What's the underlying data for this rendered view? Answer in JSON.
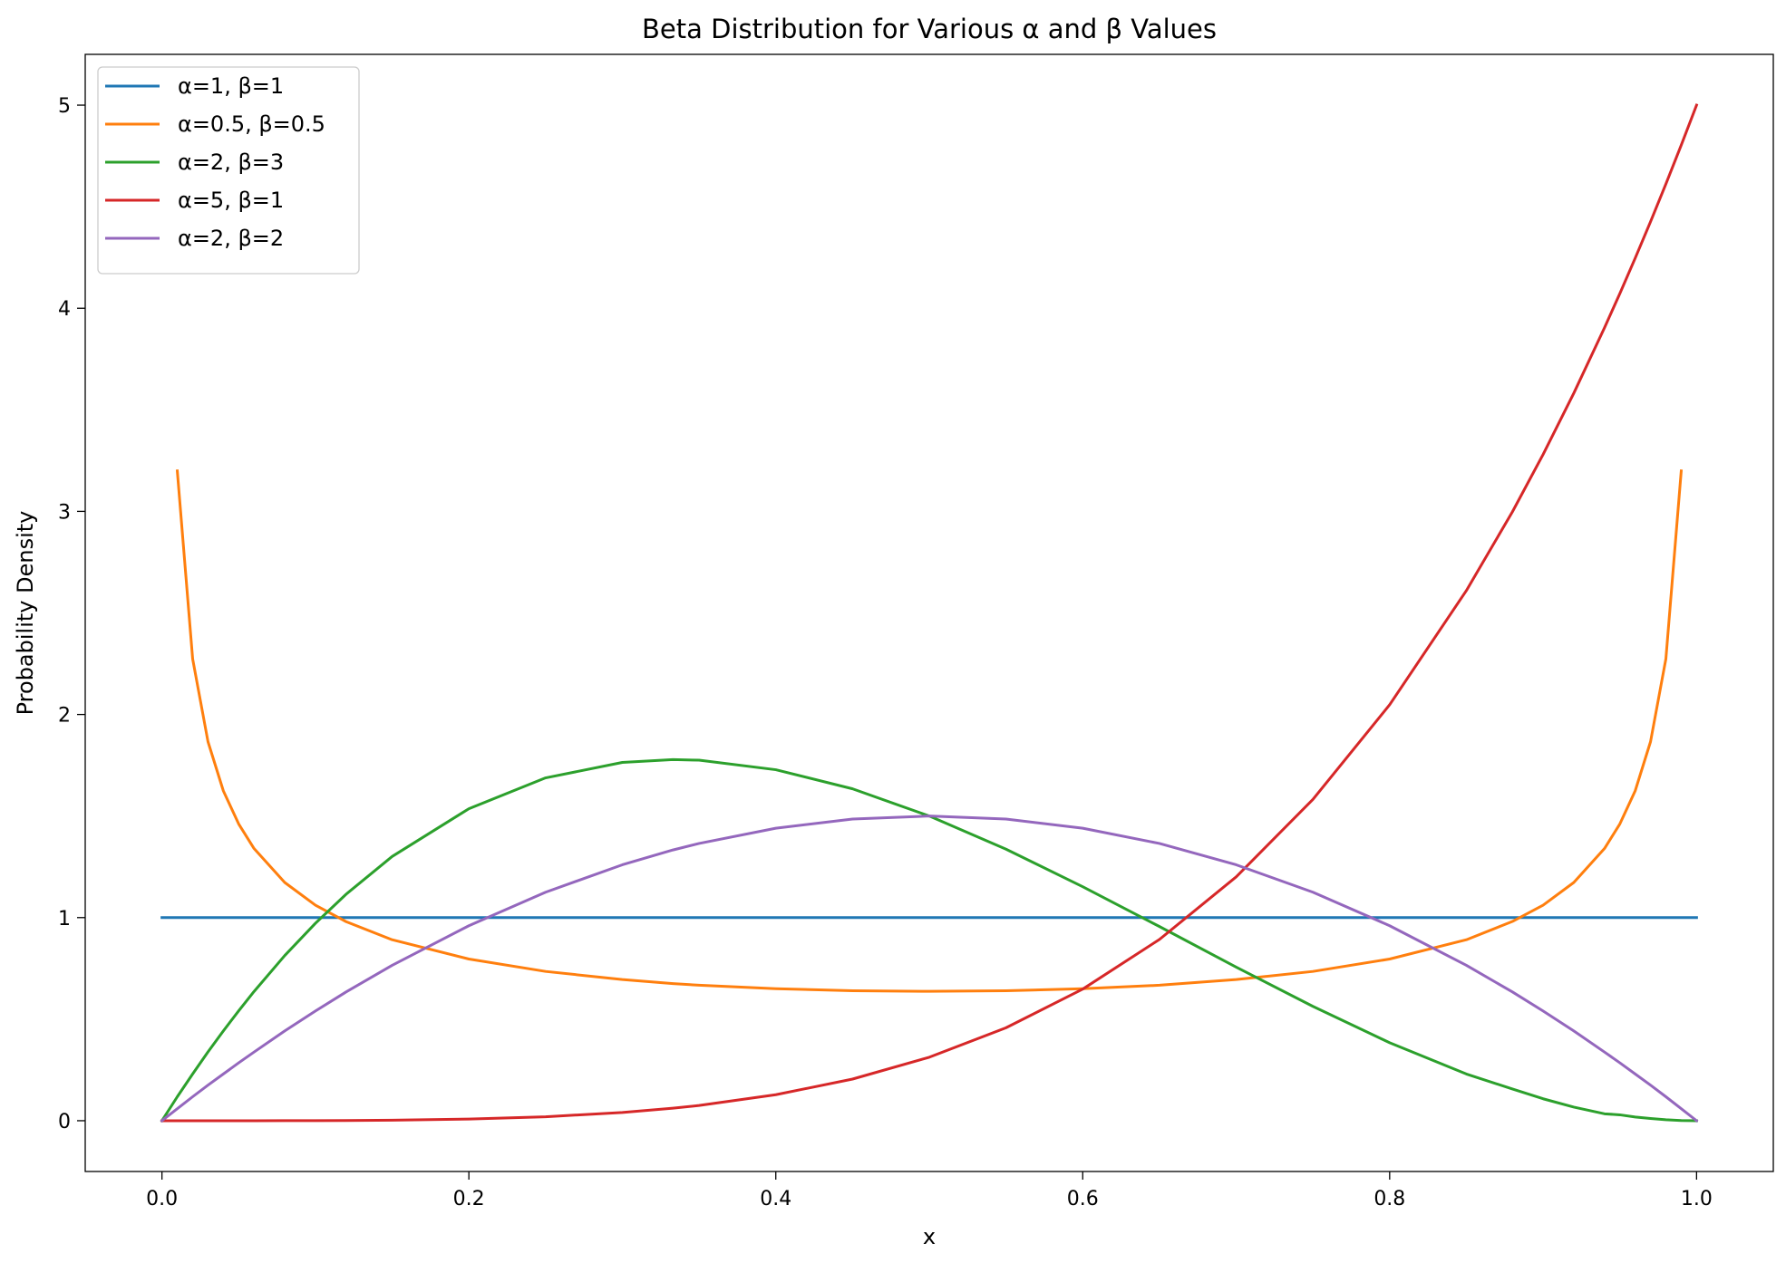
{
  "chart_data": {
    "type": "line",
    "title": "Beta Distribution for Various α and β Values",
    "xlabel": "x",
    "ylabel": "Probability Density",
    "xlim": [
      -0.05,
      1.05
    ],
    "ylim": [
      -0.25,
      5.25
    ],
    "xticks": [
      0.0,
      0.2,
      0.4,
      0.6,
      0.8,
      1.0
    ],
    "xtick_labels": [
      "0.0",
      "0.2",
      "0.4",
      "0.6",
      "0.8",
      "1.0"
    ],
    "yticks": [
      0,
      1,
      2,
      3,
      4,
      5
    ],
    "ytick_labels": [
      "0",
      "1",
      "2",
      "3",
      "4",
      "5"
    ],
    "grid": false,
    "legend_position": "top-left",
    "x": [
      0,
      0.01,
      0.02,
      0.03,
      0.04,
      0.05,
      0.06,
      0.08,
      0.1,
      0.12,
      0.15,
      0.2,
      0.25,
      0.3,
      0.333,
      0.35,
      0.4,
      0.45,
      0.5,
      0.55,
      0.6,
      0.65,
      0.7,
      0.75,
      0.8,
      0.85,
      0.88,
      0.9,
      0.92,
      0.94,
      0.95,
      0.96,
      0.97,
      0.98,
      0.99,
      1.0
    ],
    "series": [
      {
        "name": "α=1, β=1",
        "color": "#1f77b4",
        "values": [
          1,
          1,
          1,
          1,
          1,
          1,
          1,
          1,
          1,
          1,
          1,
          1,
          1,
          1,
          1,
          1,
          1,
          1,
          1,
          1,
          1,
          1,
          1,
          1,
          1,
          1,
          1,
          1,
          1,
          1,
          1,
          1,
          1,
          1,
          1,
          1
        ]
      },
      {
        "name": "α=0.5, β=0.5",
        "color": "#ff7f0e",
        "values": [
          null,
          3.199,
          2.274,
          1.866,
          1.624,
          1.461,
          1.34,
          1.173,
          1.061,
          0.98,
          0.891,
          0.796,
          0.735,
          0.695,
          0.675,
          0.667,
          0.65,
          0.64,
          0.637,
          0.64,
          0.65,
          0.667,
          0.695,
          0.735,
          0.796,
          0.891,
          0.981,
          1.061,
          1.173,
          1.34,
          1.461,
          1.624,
          1.866,
          2.274,
          3.199,
          null
        ]
      },
      {
        "name": "α=2, β=3",
        "color": "#2ca02c",
        "values": [
          0,
          0.118,
          0.23,
          0.339,
          0.442,
          0.541,
          0.636,
          0.813,
          0.972,
          1.115,
          1.301,
          1.536,
          1.688,
          1.764,
          1.778,
          1.775,
          1.728,
          1.634,
          1.5,
          1.337,
          1.152,
          0.956,
          0.756,
          0.563,
          0.384,
          0.23,
          0.156,
          0.108,
          0.067,
          0.034,
          0.029,
          0.018,
          0.011,
          0.005,
          0.001,
          0
        ]
      },
      {
        "name": "α=5, β=1",
        "color": "#d62728",
        "values": [
          0,
          0,
          0,
          0,
          0,
          0,
          0,
          0.0002,
          0.0005,
          0.001,
          0.0025,
          0.008,
          0.0195,
          0.0405,
          0.0617,
          0.075,
          0.128,
          0.205,
          0.3125,
          0.4575,
          0.648,
          0.8925,
          1.2005,
          1.582,
          2.048,
          2.61,
          2.998,
          3.2805,
          3.582,
          3.904,
          4.0725,
          4.2467,
          4.426,
          4.6118,
          4.803,
          5.0
        ]
      },
      {
        "name": "α=2, β=2",
        "color": "#9467bd",
        "values": [
          0,
          0.059,
          0.118,
          0.175,
          0.23,
          0.285,
          0.338,
          0.442,
          0.54,
          0.634,
          0.765,
          0.96,
          1.125,
          1.26,
          1.333,
          1.365,
          1.44,
          1.485,
          1.5,
          1.485,
          1.44,
          1.365,
          1.26,
          1.125,
          0.96,
          0.765,
          0.634,
          0.54,
          0.442,
          0.338,
          0.285,
          0.23,
          0.175,
          0.118,
          0.059,
          0
        ]
      }
    ]
  }
}
